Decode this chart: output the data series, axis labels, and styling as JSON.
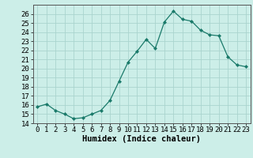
{
  "x": [
    0,
    1,
    2,
    3,
    4,
    5,
    6,
    7,
    8,
    9,
    10,
    11,
    12,
    13,
    14,
    15,
    16,
    17,
    18,
    19,
    20,
    21,
    22,
    23
  ],
  "y": [
    15.8,
    16.1,
    15.4,
    15.0,
    14.5,
    14.6,
    15.0,
    15.4,
    16.5,
    18.6,
    20.7,
    21.9,
    23.2,
    22.2,
    25.1,
    26.3,
    25.4,
    25.2,
    24.2,
    23.7,
    23.6,
    21.3,
    20.4,
    20.2
  ],
  "line_color": "#1a7a6a",
  "marker": "D",
  "marker_size": 2,
  "bg_color": "#cceee8",
  "grid_color": "#aad4ce",
  "xlabel": "Humidex (Indice chaleur)",
  "ylim": [
    14,
    27
  ],
  "xlim": [
    -0.5,
    23.5
  ],
  "yticks": [
    14,
    15,
    16,
    17,
    18,
    19,
    20,
    21,
    22,
    23,
    24,
    25,
    26
  ],
  "xticks": [
    0,
    1,
    2,
    3,
    4,
    5,
    6,
    7,
    8,
    9,
    10,
    11,
    12,
    13,
    14,
    15,
    16,
    17,
    18,
    19,
    20,
    21,
    22,
    23
  ],
  "xlabel_fontsize": 7.5,
  "tick_fontsize": 6.5
}
